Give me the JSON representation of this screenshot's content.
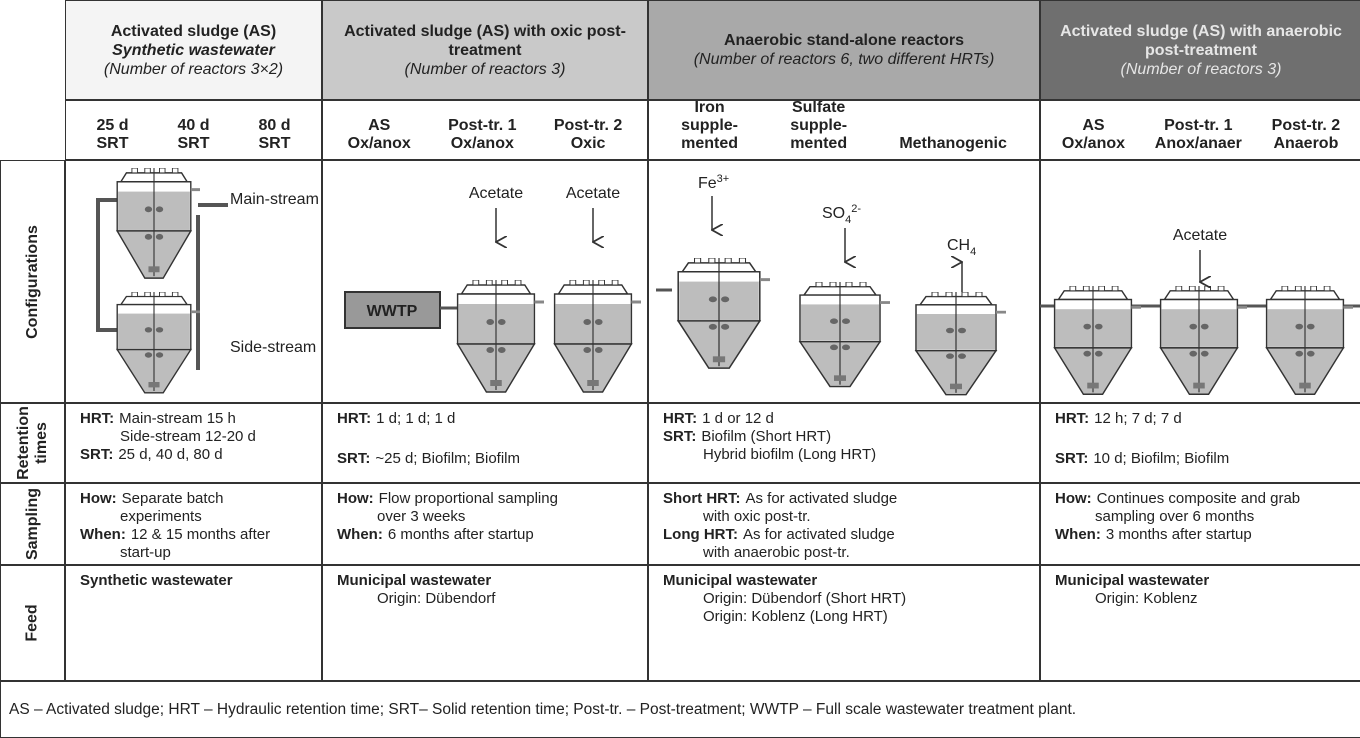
{
  "columns": [
    {
      "title": "Activated  sludge (AS)",
      "subtitle": "Synthetic wastewater",
      "note": "(Number of reactors 3×2)",
      "subcolumns": [
        [
          "25 d",
          "SRT"
        ],
        [
          "40 d",
          "SRT"
        ],
        [
          "80 d",
          "SRT"
        ]
      ]
    },
    {
      "title": "Activated sludge (AS) with oxic post-treatment",
      "note": "(Number of reactors 3)",
      "subcolumns": [
        [
          "AS",
          "Ox/anox"
        ],
        [
          "Post-tr. 1",
          "Ox/anox"
        ],
        [
          "Post-tr. 2",
          "Oxic"
        ]
      ]
    },
    {
      "title": "Anaerobic stand-alone reactors",
      "note": "(Number of reactors 6, two different HRTs)",
      "subcolumns": [
        [
          "Iron",
          "supple-",
          "mented"
        ],
        [
          "Sulfate",
          "supple-",
          "mented"
        ],
        [
          "Methanogenic"
        ]
      ]
    },
    {
      "title": "Activated sludge (AS) with anaerobic post-treatment",
      "note": "(Number of reactors 3)",
      "subcolumns": [
        [
          "AS",
          "Ox/anox"
        ],
        [
          "Post-tr. 1",
          "Anox/anaer"
        ],
        [
          "Post-tr. 2",
          "Anaerob"
        ]
      ]
    }
  ],
  "row_labels": {
    "configurations": [
      "Configurations"
    ],
    "retention": [
      "Retention",
      "times"
    ],
    "sampling": [
      "Sampling"
    ],
    "feed": [
      "Feed"
    ]
  },
  "configurations": {
    "main_stream": "Main-stream",
    "side_stream": "Side-stream",
    "wwtp": "WWTP",
    "acetate_labels": [
      "Acetate",
      "Acetate",
      "Acetate"
    ],
    "iron": {
      "base": "Fe",
      "sup": "3+"
    },
    "sulfate": {
      "base": "SO",
      "sub": "4",
      "sup": "2-"
    },
    "methane": {
      "base": "CH",
      "sub": "4"
    }
  },
  "retention": [
    [
      {
        "label": "HRT:",
        "text": "Main-stream 15 h"
      },
      {
        "text": "Side-stream 12-20 d"
      },
      {
        "label": "SRT:",
        "text": "25 d, 40 d, 80 d"
      }
    ],
    [
      {
        "label": "HRT:",
        "text": "1 d; 1 d; 1 d"
      },
      {
        "label": "SRT:",
        "text": "~25 d; Biofilm; Biofilm"
      }
    ],
    [
      {
        "label": "HRT:",
        "text": "1 d or 12 d"
      },
      {
        "label": "SRT:",
        "text": "Biofilm (Short HRT)"
      },
      {
        "text": "Hybrid biofilm (Long HRT)"
      }
    ],
    [
      {
        "label": "HRT:",
        "text": "12 h; 7 d; 7 d"
      },
      {
        "label": "SRT:",
        "text": "10 d; Biofilm; Biofilm"
      }
    ]
  ],
  "sampling": [
    [
      {
        "label": "How:",
        "text": "Separate batch"
      },
      {
        "text": "experiments"
      },
      {
        "label": "When:",
        "text": "12 & 15 months after"
      },
      {
        "text": "start-up"
      }
    ],
    [
      {
        "label": "How:",
        "text": "Flow proportional sampling"
      },
      {
        "text": "over 3 weeks"
      },
      {
        "label": "When:",
        "text": "6 months after startup"
      }
    ],
    [
      {
        "label": "Short HRT:",
        "text": "As for activated sludge"
      },
      {
        "text": "with oxic post-tr."
      },
      {
        "label": "Long HRT:",
        "text": "As for activated sludge"
      },
      {
        "text": "with anaerobic post-tr."
      }
    ],
    [
      {
        "label": "How:",
        "text": "Continues composite and grab"
      },
      {
        "text": "sampling over 6 months"
      },
      {
        "label": "When:",
        "text": "3 months after startup"
      }
    ]
  ],
  "feed": [
    [
      {
        "label": "Synthetic wastewater"
      }
    ],
    [
      {
        "label": "Municipal wastewater"
      },
      {
        "text": "Origin: Dübendorf"
      }
    ],
    [
      {
        "label": "Municipal wastewater"
      },
      {
        "text": "Origin: Dübendorf (Short HRT)"
      },
      {
        "text": "Origin: Koblenz (Long HRT)"
      }
    ],
    [
      {
        "label": "Municipal wastewater"
      },
      {
        "text": "Origin: Koblenz"
      }
    ]
  ],
  "footnote": "AS – Activated sludge; HRT – Hydraulic retention time; SRT– Solid retention time; Post-tr. – Post-treatment; WWTP – Full scale wastewater treatment plant."
}
